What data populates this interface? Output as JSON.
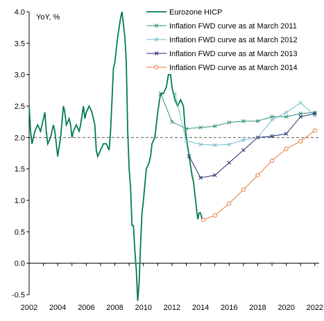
{
  "chart_data": {
    "type": "line",
    "ylabel": "YoY, %",
    "xlim": [
      2002,
      2022.3
    ],
    "ylim": [
      -0.5,
      4.0
    ],
    "x_ticks": [
      2002,
      2004,
      2006,
      2008,
      2010,
      2012,
      2014,
      2016,
      2018,
      2020,
      2022
    ],
    "y_ticks": [
      -0.5,
      0.0,
      0.5,
      1.0,
      1.5,
      2.0,
      2.5,
      3.0,
      3.5,
      4.0
    ],
    "y_tick_labels": [
      "-0.5",
      "0.0",
      "0.5",
      "1.0",
      "1.5",
      "2.0",
      "2.5",
      "3.0",
      "3.5",
      "4.0"
    ],
    "grid": false,
    "legend_position": "top-right",
    "reference_line": {
      "y": 2.0,
      "style": "dashed",
      "color": "#555555"
    },
    "series": [
      {
        "name": "Eurozone HICP",
        "color": "#007a50",
        "marker": "none",
        "x": [
          2002.0,
          2002.1,
          2002.2,
          2002.3,
          2002.4,
          2002.6,
          2002.8,
          2003.0,
          2003.1,
          2003.2,
          2003.3,
          2003.5,
          2003.7,
          2003.8,
          2004.0,
          2004.2,
          2004.4,
          2004.5,
          2004.6,
          2004.8,
          2004.9,
          2005.0,
          2005.1,
          2005.3,
          2005.5,
          2005.6,
          2005.8,
          2005.9,
          2006.0,
          2006.2,
          2006.4,
          2006.6,
          2006.7,
          2006.8,
          2007.0,
          2007.2,
          2007.4,
          2007.6,
          2007.7,
          2007.8,
          2007.9,
          2008.0,
          2008.2,
          2008.4,
          2008.5,
          2008.6,
          2008.7,
          2008.8,
          2008.9,
          2009.0,
          2009.1,
          2009.2,
          2009.3,
          2009.4,
          2009.5,
          2009.6,
          2009.7,
          2009.8,
          2009.9,
          2010.0,
          2010.2,
          2010.4,
          2010.5,
          2010.6,
          2010.8,
          2011.0,
          2011.2,
          2011.4,
          2011.6,
          2011.75,
          2011.9,
          2012.0,
          2012.2,
          2012.4,
          2012.6,
          2012.8,
          2012.9,
          2013.0,
          2013.2,
          2013.4,
          2013.5,
          2013.6,
          2013.8,
          2013.9,
          2014.0,
          2014.1,
          2014.2
        ],
        "y": [
          2.5,
          2.1,
          1.9,
          2.0,
          2.1,
          2.2,
          2.1,
          2.3,
          2.4,
          2.1,
          1.9,
          2.0,
          2.2,
          2.1,
          1.7,
          2.0,
          2.5,
          2.4,
          2.2,
          2.3,
          2.2,
          2.0,
          2.1,
          2.2,
          2.1,
          2.2,
          2.5,
          2.3,
          2.4,
          2.5,
          2.4,
          2.2,
          1.8,
          1.7,
          1.8,
          1.9,
          1.9,
          1.8,
          2.1,
          2.6,
          3.1,
          3.2,
          3.6,
          3.9,
          4.0,
          3.8,
          3.6,
          3.2,
          2.1,
          1.5,
          1.2,
          0.6,
          0.6,
          0.2,
          -0.1,
          -0.6,
          -0.3,
          0.3,
          0.8,
          1.0,
          1.5,
          1.6,
          1.7,
          1.9,
          2.0,
          2.4,
          2.7,
          2.7,
          2.8,
          3.0,
          3.0,
          2.8,
          2.6,
          2.5,
          2.6,
          2.5,
          2.2,
          2.0,
          1.7,
          1.4,
          1.3,
          1.1,
          0.7,
          0.8,
          0.8,
          0.7,
          0.7
        ]
      },
      {
        "name": "Inflation FWD curve as at March 2011",
        "color": "#2e8b7a",
        "marker": "x",
        "x": [
          2011.2,
          2012.0,
          2013.0,
          2014.0,
          2015.0,
          2016.0,
          2017.0,
          2018.0,
          2019.0,
          2020.0,
          2021.0,
          2022.0
        ],
        "y": [
          2.7,
          2.25,
          2.14,
          2.16,
          2.18,
          2.24,
          2.26,
          2.26,
          2.33,
          2.33,
          2.38,
          2.4
        ]
      },
      {
        "name": "Inflation FWD curve as at March 2012",
        "color": "#6cbcc8",
        "marker": "x",
        "x": [
          2012.2,
          2013.0,
          2014.0,
          2015.0,
          2016.0,
          2017.0,
          2018.0,
          2019.0,
          2020.0,
          2021.0,
          2022.0
        ],
        "y": [
          2.7,
          1.95,
          1.89,
          1.88,
          1.89,
          1.96,
          2.0,
          2.28,
          2.4,
          2.55,
          2.35
        ]
      },
      {
        "name": "Inflation FWD curve as at March 2013",
        "color": "#1f2a6e",
        "marker": "x",
        "x": [
          2013.2,
          2014.0,
          2015.0,
          2016.0,
          2017.0,
          2018.0,
          2019.0,
          2020.0,
          2021.0,
          2022.0
        ],
        "y": [
          1.7,
          1.36,
          1.4,
          1.6,
          1.8,
          2.0,
          2.02,
          2.06,
          2.33,
          2.38
        ]
      },
      {
        "name": "Inflation FWD curve as at March 2014",
        "color": "#e8763a",
        "marker": "circle",
        "x": [
          2014.2,
          2015.0,
          2016.0,
          2017.0,
          2018.0,
          2019.0,
          2020.0,
          2021.0,
          2022.0
        ],
        "y": [
          0.69,
          0.76,
          0.95,
          1.17,
          1.4,
          1.63,
          1.82,
          1.94,
          2.11
        ]
      }
    ]
  }
}
